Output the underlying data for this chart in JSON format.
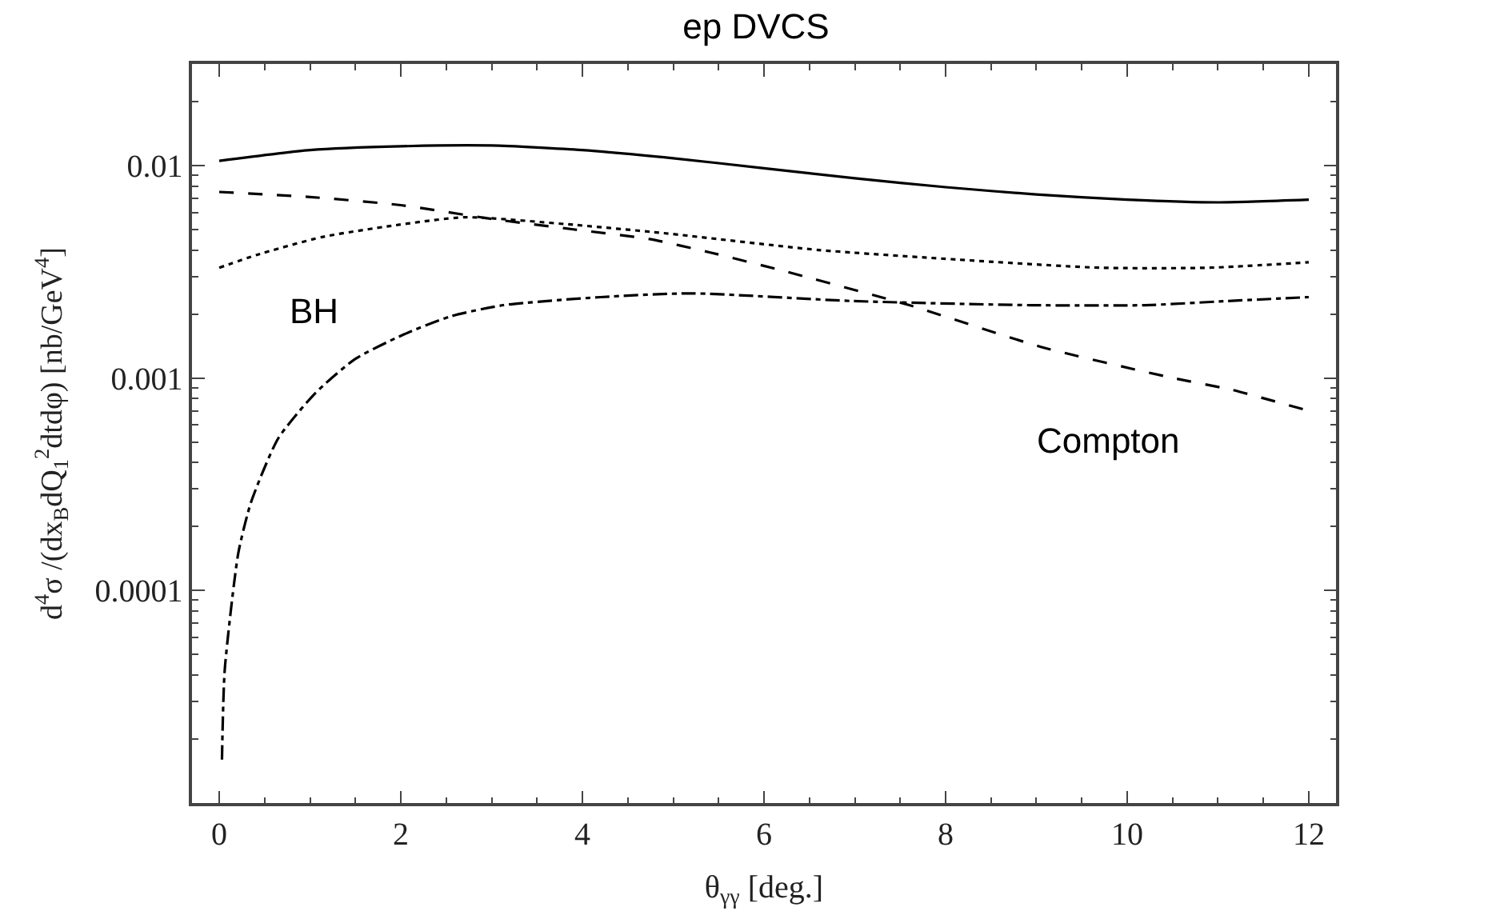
{
  "chart_data": {
    "type": "line",
    "title": "ep DVCS",
    "xlabel": "θ$_{γγ}$ [deg.]",
    "ylabel": "d$^{4}$σ /(dx$_{B}$dQ$_{1}$$^{2}$dtdφ) [nb/GeV$^{4}$]",
    "log": "y",
    "xlim": [
      -0.3,
      12.3
    ],
    "xticks": [
      0,
      2,
      4,
      6,
      8,
      10,
      12
    ],
    "ylim": [
      1e-05,
      0.03
    ],
    "yticks": [
      0.0001,
      0.001,
      0.01
    ],
    "marker": "none",
    "series": [
      {
        "color": "#000000",
        "line_style": "solid",
        "x": [
          0,
          1,
          2,
          3,
          4,
          5,
          6,
          7,
          8,
          9,
          10,
          11,
          12
        ],
        "values": [
          0.0105,
          0.0118,
          0.0123,
          0.0124,
          0.0118,
          0.0108,
          0.0097,
          0.0087,
          0.0079,
          0.0073,
          0.0069,
          0.0067,
          0.0069
        ]
      },
      {
        "color": "#000000",
        "line_style": "dashed",
        "x": [
          0,
          1,
          2,
          3,
          3.9,
          4.74,
          5.4,
          6.2,
          7.6,
          9.05,
          10.5,
          11.15,
          12
        ],
        "values": [
          0.0075,
          0.0071,
          0.0065,
          0.0056,
          0.005,
          0.0045,
          0.0039,
          0.0032,
          0.0022,
          0.0014,
          0.001,
          0.00088,
          0.0007
        ]
      },
      {
        "color": "#000000",
        "line_style": "dotted",
        "x": [
          0,
          0.42,
          1.13,
          1.9,
          2.7,
          3.8,
          4.9,
          6.6,
          8.15,
          9.7,
          10.9,
          12
        ],
        "values": [
          0.0033,
          0.0038,
          0.0046,
          0.0052,
          0.0057,
          0.0053,
          0.0048,
          0.004,
          0.0036,
          0.0033,
          0.0033,
          0.0035
        ]
      },
      {
        "color": "#000000",
        "line_style": "dashdot",
        "x": [
          0.03,
          0.06,
          0.21,
          0.35,
          0.65,
          1.06,
          1.5,
          2.03,
          2.55,
          3.13,
          4.2,
          5.2,
          6.98,
          8.93,
          10.2,
          11.1,
          12
        ],
        "values": [
          1.6e-05,
          4.2e-05,
          0.00015,
          0.00026,
          0.00052,
          0.00085,
          0.00123,
          0.0016,
          0.00195,
          0.0022,
          0.0024,
          0.0025,
          0.0023,
          0.0022,
          0.0022,
          0.0023,
          0.0024
        ]
      }
    ],
    "annotations": [
      "BH",
      "Compton"
    ]
  }
}
